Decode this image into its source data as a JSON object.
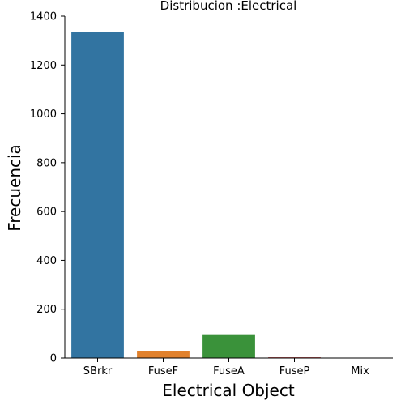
{
  "chart_data": {
    "type": "bar",
    "title": "Distribucion :Electrical",
    "xlabel": "Electrical Object",
    "ylabel": "Frecuencia",
    "categories": [
      "SBrkr",
      "FuseF",
      "FuseA",
      "FuseP",
      "Mix"
    ],
    "values": [
      1334,
      27,
      94,
      3,
      1
    ],
    "colors": [
      "#3274a1",
      "#e1812c",
      "#3a923a",
      "#c03d3e",
      "#9372b2"
    ],
    "ylim": [
      0,
      1400
    ],
    "yticks": [
      0,
      200,
      400,
      600,
      800,
      1000,
      1200,
      1400
    ],
    "grid": false,
    "legend": "none"
  }
}
